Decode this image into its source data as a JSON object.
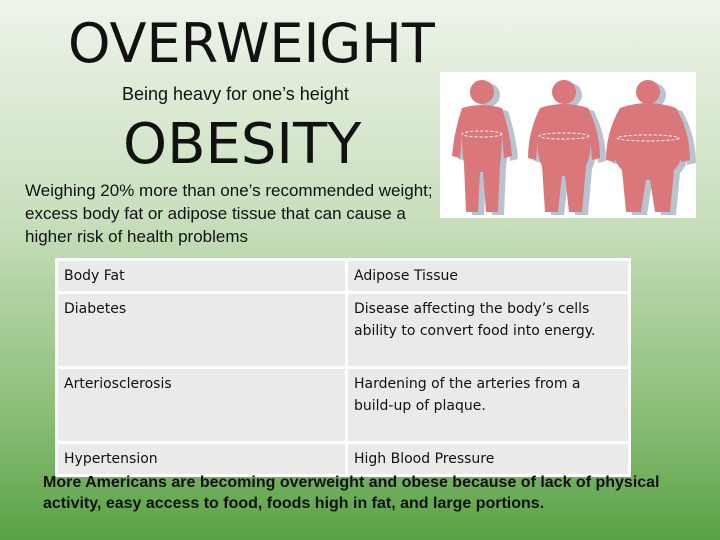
{
  "slide": {
    "title": "OVERWEIGHT",
    "subtitle": "Being heavy for one’s height",
    "heading": "OBESITY",
    "definition": "Weighing 20% more than one’s recommended weight; excess body fat or adipose tissue that can cause a higher risk of health problems",
    "table": {
      "rows": [
        [
          "Body Fat",
          "Adipose Tissue"
        ],
        [
          "Diabetes",
          "Disease affecting the body’s cells ability to convert food into energy."
        ],
        [
          "Arteriosclerosis",
          "Hardening of the arteries from a build-up of plaque."
        ],
        [
          "Hypertension",
          "High Blood Pressure"
        ]
      ]
    },
    "footer": "More Americans are becoming overweight and obese because of lack of physical activity, easy access to food, foods high in fat, and large portions."
  }
}
